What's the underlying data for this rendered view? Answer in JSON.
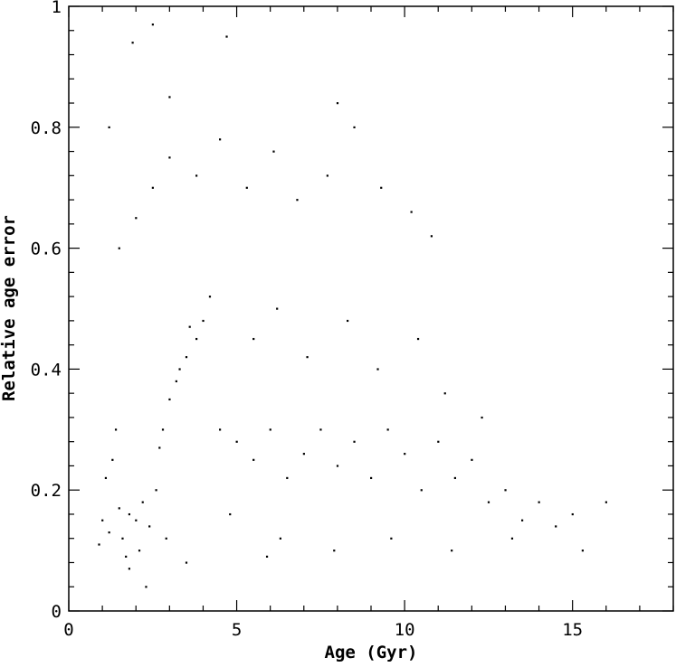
{
  "chart_data": {
    "type": "scatter",
    "title": "",
    "xlabel": "Age (Gyr)",
    "ylabel": "Relative age error",
    "xlim": [
      0,
      18
    ],
    "ylim": [
      0,
      1
    ],
    "x_ticks": [
      "0",
      "5",
      "10",
      "15"
    ],
    "y_ticks": [
      "0",
      "0.2",
      "0.4",
      "0.6",
      "0.8",
      "1"
    ],
    "grid": false,
    "legend": "none",
    "marker_color": "#000000",
    "series": [
      {
        "points": [
          [
            1.0,
            0.15
          ],
          [
            1.2,
            0.13
          ],
          [
            1.5,
            0.17
          ],
          [
            1.8,
            0.16
          ],
          [
            2.0,
            0.15
          ],
          [
            2.2,
            0.18
          ],
          [
            1.6,
            0.12
          ],
          [
            2.4,
            0.14
          ],
          [
            1.1,
            0.22
          ],
          [
            1.3,
            0.25
          ],
          [
            2.6,
            0.2
          ],
          [
            0.9,
            0.11
          ],
          [
            1.7,
            0.09
          ],
          [
            2.1,
            0.1
          ],
          [
            2.9,
            0.12
          ],
          [
            1.4,
            0.3
          ],
          [
            3.0,
            0.35
          ],
          [
            3.2,
            0.38
          ],
          [
            3.5,
            0.42
          ],
          [
            3.8,
            0.45
          ],
          [
            4.0,
            0.48
          ],
          [
            4.2,
            0.52
          ],
          [
            3.6,
            0.47
          ],
          [
            3.3,
            0.4
          ],
          [
            2.8,
            0.3
          ],
          [
            2.7,
            0.27
          ],
          [
            4.5,
            0.3
          ],
          [
            5.0,
            0.28
          ],
          [
            5.5,
            0.25
          ],
          [
            6.0,
            0.3
          ],
          [
            6.5,
            0.22
          ],
          [
            7.0,
            0.26
          ],
          [
            7.5,
            0.3
          ],
          [
            8.0,
            0.24
          ],
          [
            8.5,
            0.28
          ],
          [
            9.0,
            0.22
          ],
          [
            9.5,
            0.3
          ],
          [
            10.0,
            0.26
          ],
          [
            10.5,
            0.2
          ],
          [
            11.0,
            0.28
          ],
          [
            11.5,
            0.22
          ],
          [
            12.0,
            0.25
          ],
          [
            12.5,
            0.18
          ],
          [
            13.0,
            0.2
          ],
          [
            13.5,
            0.15
          ],
          [
            14.0,
            0.18
          ],
          [
            14.5,
            0.14
          ],
          [
            15.0,
            0.16
          ],
          [
            5.5,
            0.45
          ],
          [
            6.2,
            0.5
          ],
          [
            7.1,
            0.42
          ],
          [
            8.3,
            0.48
          ],
          [
            9.2,
            0.4
          ],
          [
            10.4,
            0.45
          ],
          [
            11.2,
            0.36
          ],
          [
            12.3,
            0.32
          ],
          [
            1.5,
            0.6
          ],
          [
            2.0,
            0.65
          ],
          [
            2.5,
            0.7
          ],
          [
            3.0,
            0.75
          ],
          [
            3.8,
            0.72
          ],
          [
            4.5,
            0.78
          ],
          [
            5.3,
            0.7
          ],
          [
            6.1,
            0.76
          ],
          [
            6.8,
            0.68
          ],
          [
            7.7,
            0.72
          ],
          [
            8.5,
            0.8
          ],
          [
            9.3,
            0.7
          ],
          [
            10.2,
            0.66
          ],
          [
            10.8,
            0.62
          ],
          [
            1.2,
            0.8
          ],
          [
            1.9,
            0.94
          ],
          [
            2.5,
            0.97
          ],
          [
            4.7,
            0.95
          ],
          [
            3.0,
            0.85
          ],
          [
            8.0,
            0.84
          ],
          [
            15.3,
            0.1
          ],
          [
            16.0,
            0.18
          ],
          [
            4.8,
            0.16
          ],
          [
            6.3,
            0.12
          ],
          [
            7.9,
            0.1
          ],
          [
            9.6,
            0.12
          ],
          [
            11.4,
            0.1
          ],
          [
            13.2,
            0.12
          ],
          [
            2.3,
            0.04
          ],
          [
            1.8,
            0.07
          ],
          [
            3.5,
            0.08
          ],
          [
            5.9,
            0.09
          ]
        ]
      }
    ]
  }
}
